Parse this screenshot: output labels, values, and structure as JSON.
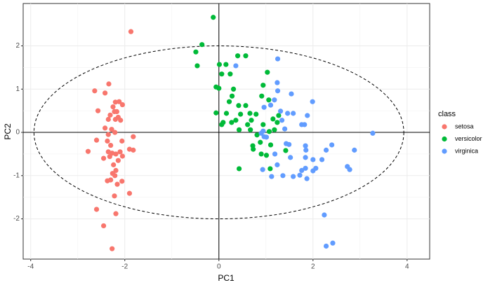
{
  "chart_data": {
    "type": "scatter",
    "x_label": "PC1",
    "y_label": "PC2",
    "xlim": [
      -4.16,
      4.48
    ],
    "ylim": [
      -2.93,
      2.98
    ],
    "xticks": [
      -4,
      -2,
      0,
      2,
      4
    ],
    "yticks": [
      -2,
      -1,
      0,
      1,
      2
    ],
    "grid": true,
    "hline": 0,
    "vline": 0,
    "ellipse": {
      "cx": 0,
      "cy": 0,
      "rx": 3.93,
      "ry": 2.0
    },
    "legend_title": "class",
    "legend_position": "right",
    "series": [
      {
        "name": "setosa",
        "color": "#F8766D",
        "x": [
          -1.87,
          -2.64,
          -2.42,
          -2.34,
          -2.57,
          -2.2,
          -2.12,
          -2.05,
          -2.25,
          -2.17,
          -2.22,
          -2.31,
          -2.14,
          -2.35,
          -2.2,
          -2.09,
          -2.42,
          -2.28,
          -2.35,
          -2.21,
          -2.6,
          -2.37,
          -1.82,
          -2.06,
          -2.3,
          -2.78,
          -2.35,
          -2.27,
          -2.19,
          -2.1,
          -1.9,
          -1.82,
          -2.05,
          -2.32,
          -2.45,
          -2.14,
          -2.24,
          -2.19,
          -2.26,
          -2.21,
          -2.37,
          -2.3,
          -2.06,
          -2.22,
          -1.9,
          -2.6,
          -2.19,
          -2.45,
          -2.27,
          -2.16
        ],
        "y": [
          2.33,
          0.96,
          0.91,
          1.12,
          0.5,
          0.7,
          0.71,
          0.64,
          0.59,
          0.48,
          0.48,
          0.4,
          0.35,
          0.3,
          0.3,
          0.28,
          0.1,
          0.07,
          -0.05,
          0.0,
          -0.18,
          -0.2,
          -0.1,
          -0.2,
          -0.3,
          -0.44,
          -0.45,
          -0.48,
          -0.5,
          -0.45,
          -0.39,
          -0.41,
          -0.55,
          -0.56,
          -0.6,
          -0.65,
          -0.75,
          -0.88,
          -0.95,
          -1.0,
          -1.12,
          -1.1,
          -1.13,
          -1.47,
          -1.41,
          -1.78,
          -1.88,
          -2.16,
          -2.69,
          -1.2
        ]
      },
      {
        "name": "versicolor",
        "color": "#00BA38",
        "x": [
          -0.12,
          -0.36,
          -0.49,
          -0.46,
          0.01,
          0.15,
          0.4,
          0.57,
          0.06,
          0.24,
          1.03,
          -0.06,
          0.0,
          0.31,
          0.28,
          0.94,
          0.22,
          0.42,
          0.57,
          0.91,
          1.06,
          -0.06,
          0.16,
          0.46,
          0.66,
          0.79,
          0.09,
          0.06,
          0.27,
          0.36,
          0.43,
          0.61,
          0.69,
          0.67,
          0.94,
          0.81,
          1.07,
          1.18,
          0.88,
          1.1,
          0.73,
          0.9,
          1.01,
          0.43,
          1.09,
          1.42,
          1.24,
          1.27,
          1.15,
          0.72
        ],
        "y": [
          2.66,
          2.03,
          1.86,
          1.54,
          1.57,
          1.57,
          1.77,
          1.77,
          1.35,
          1.35,
          1.39,
          1.05,
          1.02,
          1.0,
          0.84,
          1.09,
          0.71,
          0.62,
          0.62,
          0.84,
          0.75,
          0.45,
          0.44,
          0.42,
          0.44,
          0.42,
          0.23,
          0.18,
          0.23,
          0.28,
          0.06,
          0.18,
          0.28,
          0.06,
          0.18,
          -0.06,
          0.02,
          0.06,
          -0.23,
          -0.29,
          -0.39,
          -0.5,
          -0.53,
          -0.84,
          -0.84,
          -0.42,
          0.23,
          0.39,
          0.31,
          -0.31
        ]
      },
      {
        "name": "virginica",
        "color": "#619CFF",
        "x": [
          1.25,
          0.36,
          1.24,
          1.25,
          1.54,
          1.18,
          1.1,
          0.96,
          1.31,
          1.46,
          1.58,
          1.99,
          1.88,
          1.34,
          1.76,
          1.82,
          1.4,
          0.94,
          0.9,
          0.96,
          1.01,
          3.27,
          1.43,
          1.49,
          1.84,
          1.85,
          2.28,
          2.4,
          2.88,
          1.19,
          1.52,
          1.84,
          2.0,
          2.19,
          1.84,
          2.0,
          1.76,
          2.06,
          2.73,
          2.78,
          1.36,
          1.58,
          1.72,
          1.87,
          1.12,
          0.93,
          2.24,
          2.42,
          2.28,
          1.24
        ],
        "y": [
          1.7,
          1.54,
          1.15,
          0.96,
          0.89,
          0.75,
          0.63,
          0.58,
          0.49,
          0.44,
          0.44,
          0.71,
          0.39,
          0.28,
          0.18,
          0.18,
          0.08,
          0.03,
          -0.02,
          -0.1,
          -0.11,
          -0.02,
          -0.26,
          -0.28,
          -0.31,
          -0.41,
          -0.41,
          -0.29,
          -0.41,
          -0.5,
          -0.58,
          -0.58,
          -0.63,
          -0.63,
          -0.83,
          -0.89,
          -0.88,
          -0.83,
          -0.79,
          -0.86,
          -1.0,
          -1.02,
          -0.99,
          -1.07,
          -1.02,
          -0.86,
          -1.91,
          -2.56,
          -2.63,
          -0.75
        ]
      }
    ]
  }
}
